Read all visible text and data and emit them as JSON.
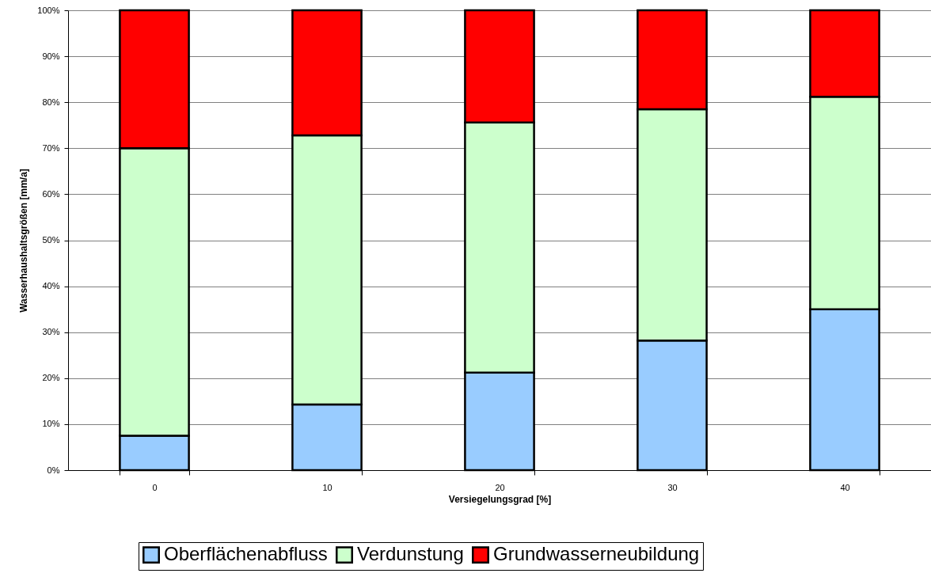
{
  "chart_data": {
    "type": "bar",
    "stacked": true,
    "xlabel": "Versiegelungsgrad [%]",
    "ylabel": "Wasserhaushaltsgrößen [mm/a]",
    "categories": [
      "0",
      "10",
      "20",
      "30",
      "40"
    ],
    "series": [
      {
        "name": "Oberflächenabfluss",
        "color": "#99ccff",
        "values": [
          7.5,
          14.3,
          21.2,
          28.2,
          35.0
        ]
      },
      {
        "name": "Verdunstung",
        "color": "#ccffcc",
        "values": [
          62.5,
          58.5,
          54.4,
          50.3,
          46.2
        ]
      },
      {
        "name": "Grundwasserneubildung",
        "color": "#ff0000",
        "values": [
          30.0,
          27.2,
          24.4,
          21.5,
          18.8
        ]
      }
    ],
    "ylim": [
      0,
      100
    ],
    "yticks": [
      {
        "value": 0,
        "label": "0%"
      },
      {
        "value": 10,
        "label": "10%"
      },
      {
        "value": 20,
        "label": "20%"
      },
      {
        "value": 30,
        "label": "30%"
      },
      {
        "value": 40,
        "label": "40%"
      },
      {
        "value": 50,
        "label": "50%"
      },
      {
        "value": 60,
        "label": "60%"
      },
      {
        "value": 70,
        "label": "70%"
      },
      {
        "value": 80,
        "label": "80%"
      },
      {
        "value": 90,
        "label": "90%"
      },
      {
        "value": 100,
        "label": "100%"
      }
    ],
    "grid": "y",
    "legend": "bottom"
  }
}
